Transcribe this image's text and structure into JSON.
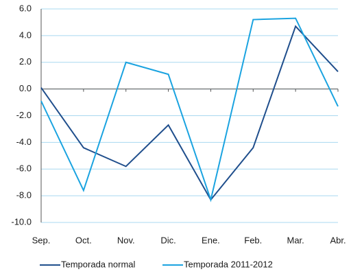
{
  "chart_data": {
    "type": "line",
    "categories": [
      "Sep.",
      "Oct.",
      "Nov.",
      "Dic.",
      "Ene.",
      "Feb.",
      "Mar.",
      "Abr."
    ],
    "series": [
      {
        "name": "Temporada normal",
        "color": "#1f4e8c",
        "values": [
          0.1,
          -4.4,
          -5.8,
          -2.7,
          -8.3,
          -4.4,
          4.7,
          1.3
        ]
      },
      {
        "name": "Temporada 2011-2012",
        "color": "#1aa3e0",
        "values": [
          -0.9,
          -7.6,
          2.0,
          1.1,
          -8.3,
          5.2,
          5.3,
          -1.3
        ]
      }
    ],
    "ylim": [
      -10,
      6
    ],
    "yticks": [
      {
        "value": -10,
        "label": "-10.0"
      },
      {
        "value": -8,
        "label": "-8.0"
      },
      {
        "value": -6,
        "label": "-6.0"
      },
      {
        "value": -4,
        "label": "-4.0"
      },
      {
        "value": -2,
        "label": "-2.0"
      },
      {
        "value": 0,
        "label": "0.0"
      },
      {
        "value": 2,
        "label": "2.0"
      },
      {
        "value": 4,
        "label": "4.0"
      },
      {
        "value": 6,
        "label": "6.0"
      }
    ],
    "grid": true,
    "legend": "bottom"
  }
}
